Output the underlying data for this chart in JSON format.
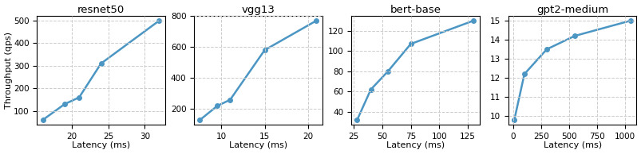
{
  "subplots": [
    {
      "title": "resnet50",
      "xlabel": "Latency (ms)",
      "x": [
        16,
        19,
        21,
        24,
        32
      ],
      "y": [
        60,
        130,
        160,
        310,
        500
      ],
      "xlim": null,
      "ylim": [
        0,
        560
      ]
    },
    {
      "title": "vgg13",
      "xlabel": "Latency (ms)",
      "x": [
        7.5,
        9.5,
        11,
        15,
        21
      ],
      "y": [
        130,
        220,
        260,
        580,
        770
      ],
      "xlim": null,
      "ylim": null
    },
    {
      "title": "bert-base",
      "xlabel": "Latency (ms)",
      "x": [
        28,
        40,
        55,
        75,
        130
      ],
      "y": [
        32,
        62,
        80,
        107,
        130
      ],
      "xlim": null,
      "ylim": null
    },
    {
      "title": "gpt2-medium",
      "xlabel": "Latency (ms)",
      "x": [
        10,
        100,
        300,
        550,
        1050
      ],
      "y": [
        9.8,
        12.2,
        13.5,
        14.2,
        15.0
      ],
      "xlim": null,
      "ylim": null
    }
  ],
  "ylabel": "Throughput (qps)",
  "line_color": "#4C96C4",
  "marker": "o",
  "marker_size": 4,
  "line_width": 1.8,
  "grid": true,
  "grid_style": "--",
  "grid_color": "#cccccc",
  "background_color": "#ffffff",
  "figsize": [
    8.04,
    1.94
  ],
  "dpi": 100
}
